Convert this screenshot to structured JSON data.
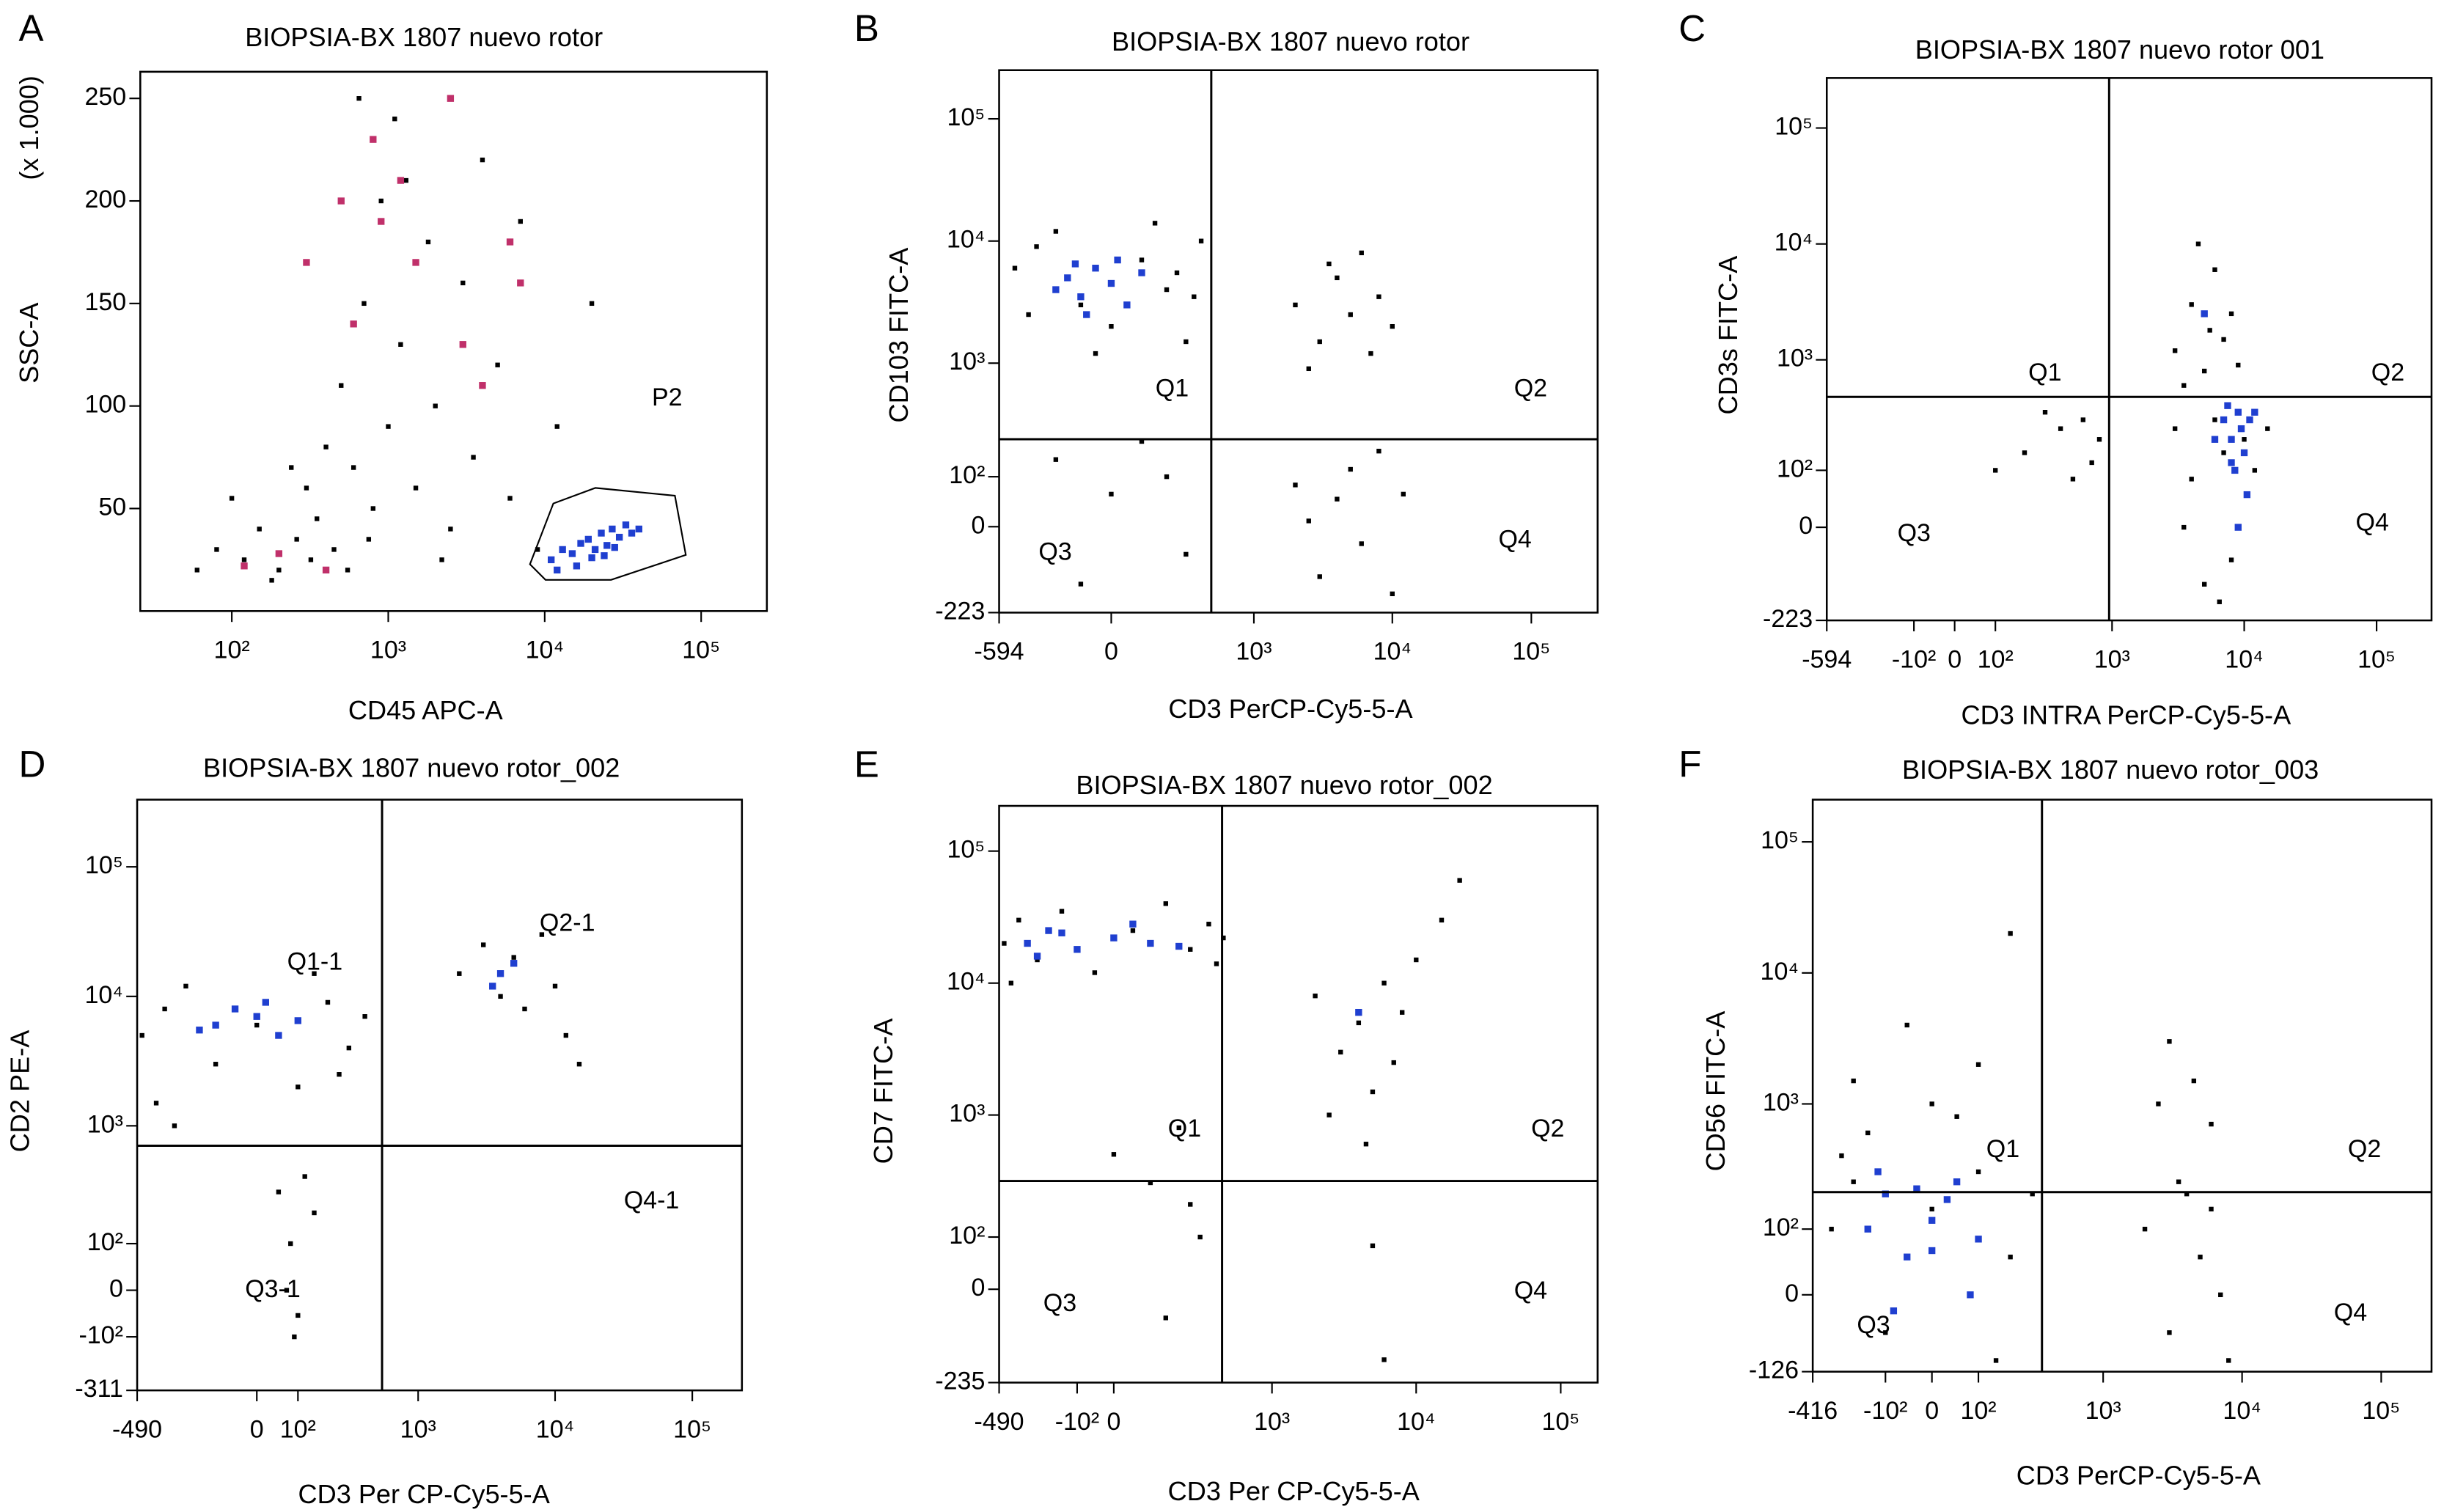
{
  "chart_data": [
    {
      "type": "scatter",
      "panel_label": "A",
      "title": "BIOPSIA-BX 1807 nuevo rotor",
      "x_label": "CD45 APC-A",
      "y_label": "SSC-A",
      "y_unit": "(x 1.000)",
      "xscale": "log",
      "yscale": "linear",
      "xlim": [
        26,
        263000
      ],
      "ylim": [
        0,
        263
      ],
      "xticks": [
        {
          "value": 100,
          "label": "10²"
        },
        {
          "value": 1000,
          "label": "10³"
        },
        {
          "value": 10000,
          "label": "10⁴"
        },
        {
          "value": 100000,
          "label": "10⁵"
        }
      ],
      "yticks": [
        50,
        100,
        150,
        200,
        250
      ],
      "gate_label": "P2",
      "series": [
        {
          "color": "#000000",
          "x": [
            80,
            120,
            150,
            200,
            260,
            300,
            350,
            400,
            450,
            500,
            600,
            700,
            800,
            900,
            1000,
            1100,
            1200,
            1500,
            1800,
            2000,
            2500,
            3000,
            3500,
            4000,
            5000,
            6000,
            7000,
            9000,
            12000,
            20000,
            60,
            100,
            180,
            240,
            320,
            550,
            650,
            750,
            1300,
            2200
          ],
          "y": [
            30,
            25,
            40,
            20,
            35,
            60,
            45,
            80,
            30,
            110,
            70,
            150,
            50,
            200,
            90,
            240,
            130,
            60,
            180,
            100,
            40,
            160,
            75,
            220,
            120,
            55,
            190,
            30,
            90,
            150,
            20,
            55,
            15,
            70,
            25,
            20,
            250,
            35,
            210,
            25
          ]
        },
        {
          "color": "#c0306a",
          "x": [
            120,
            200,
            300,
            500,
            600,
            900,
            1200,
            1500,
            3000,
            4000,
            6000,
            7000,
            2500,
            800,
            400
          ],
          "y": [
            22,
            28,
            170,
            200,
            140,
            190,
            210,
            170,
            130,
            110,
            180,
            160,
            250,
            230,
            20
          ]
        },
        {
          "color": "#1f3fd0",
          "x": [
            11000,
            13000,
            15000,
            17000,
            19000,
            21000,
            23000,
            25000,
            27000,
            30000,
            33000,
            36000,
            16000,
            20000,
            24000,
            28000,
            12000,
            40000
          ],
          "y": [
            25,
            30,
            28,
            33,
            35,
            30,
            38,
            32,
            40,
            36,
            42,
            38,
            22,
            26,
            27,
            31,
            20,
            40
          ]
        }
      ]
    },
    {
      "type": "scatter",
      "panel_label": "B",
      "title": "BIOPSIA-BX 1807 nuevo rotor",
      "x_label": "CD3 PerCP-Cy5-5-A",
      "y_label": "CD103 FITC-A",
      "xscale": "biex",
      "yscale": "biex",
      "xlim": [
        -594,
        300000
      ],
      "ylim": [
        -223,
        250000
      ],
      "xticks": [
        -594,
        0,
        {
          "value": 1000,
          "label": "10³"
        },
        {
          "value": 10000,
          "label": "10⁴"
        },
        {
          "value": 100000,
          "label": "10⁵"
        }
      ],
      "yticks": [
        {
          "value": 100000,
          "label": "10⁵"
        },
        {
          "value": 10000,
          "label": "10⁴"
        },
        {
          "value": 1000,
          "label": "10³"
        },
        {
          "value": 100,
          "label": "10²"
        },
        0,
        -223
      ],
      "quadrant_x": 480,
      "quadrant_y": 230,
      "quadrant_labels": [
        "Q1",
        "Q2",
        "Q3",
        "Q4"
      ],
      "series": [
        {
          "color": "#000000",
          "x": [
            -450,
            -300,
            -200,
            -100,
            0,
            100,
            200,
            300,
            400,
            -350,
            150,
            -50,
            250,
            350,
            2000,
            3000,
            4000,
            5000,
            6000,
            8000,
            10000,
            2500,
            7000,
            3500,
            -200,
            0,
            100,
            300,
            -100,
            200,
            2000,
            3000,
            4000,
            5000,
            6000,
            8000,
            10000,
            2500,
            12000
          ],
          "y": [
            6000,
            9000,
            12000,
            3000,
            2000,
            7000,
            4000,
            1500,
            10000,
            2500,
            14000,
            1200,
            5500,
            3500,
            3000,
            1500,
            5000,
            2500,
            8000,
            3500,
            2000,
            900,
            1200,
            6500,
            150,
            60,
            220,
            -50,
            -120,
            100,
            80,
            -100,
            50,
            120,
            -30,
            180,
            -150,
            10,
            60
          ]
        },
        {
          "color": "#1f3fd0",
          "x": [
            -150,
            -100,
            -50,
            0,
            50,
            -200,
            100,
            -80,
            20,
            -120
          ],
          "y": [
            5000,
            3500,
            6000,
            4500,
            3000,
            4000,
            5500,
            2500,
            7000,
            6500
          ]
        }
      ]
    },
    {
      "type": "scatter",
      "panel_label": "C",
      "title": "BIOPSIA-BX 1807 nuevo rotor 001",
      "x_label": "CD3 INTRA PerCP-Cy5-5-A",
      "y_label": "CD3s FITC-A",
      "xscale": "biex",
      "yscale": "biex",
      "xlim": [
        -594,
        260000
      ],
      "ylim": [
        -223,
        270000
      ],
      "xticks": [
        -594,
        {
          "value": -100,
          "label": "-10²"
        },
        0,
        {
          "value": 100,
          "label": "10²"
        },
        {
          "value": 1000,
          "label": "10³"
        },
        {
          "value": 10000,
          "label": "10⁴"
        },
        {
          "value": 100000,
          "label": "10⁵"
        }
      ],
      "yticks": [
        {
          "value": 100000,
          "label": "10⁵"
        },
        {
          "value": 10000,
          "label": "10⁴"
        },
        {
          "value": 1000,
          "label": "10³"
        },
        {
          "value": 100,
          "label": "10²"
        },
        0,
        -223
      ],
      "quadrant_x": 950,
      "quadrant_y": 477,
      "quadrant_labels": [
        "Q1",
        "Q2",
        "Q3",
        "Q4"
      ],
      "series": [
        {
          "color": "#000000",
          "x": [
            3000,
            4000,
            5000,
            6000,
            7000,
            8000,
            4500,
            9000,
            5500,
            3500,
            200,
            400,
            600,
            800,
            100,
            300,
            700,
            500,
            3000,
            4000,
            5000,
            6000,
            7000,
            8000,
            9000,
            10000,
            12000,
            15000,
            3500,
            6500
          ],
          "y": [
            1200,
            3000,
            800,
            6000,
            1500,
            2500,
            10000,
            900,
            1800,
            600,
            150,
            250,
            300,
            200,
            100,
            350,
            120,
            80,
            250,
            80,
            -100,
            300,
            150,
            -50,
            350,
            200,
            100,
            250,
            0,
            -150
          ]
        },
        {
          "color": "#1f3fd0",
          "x": [
            7000,
            8000,
            9000,
            10000,
            8500,
            9500,
            7500,
            11000,
            6000,
            10500,
            5000,
            8000,
            9000,
            12000
          ],
          "y": [
            300,
            200,
            350,
            150,
            100,
            250,
            400,
            300,
            200,
            50,
            2500,
            120,
            0,
            350
          ]
        }
      ]
    },
    {
      "type": "scatter",
      "panel_label": "D",
      "title": "BIOPSIA-BX 1807 nuevo rotor_002",
      "x_label": "CD3  Per CP-Cy5-5-A",
      "y_label": "CD2 PE-A",
      "xscale": "biex",
      "yscale": "biex",
      "xlim": [
        -490,
        230000
      ],
      "ylim": [
        -311,
        330000
      ],
      "xticks": [
        -490,
        0,
        {
          "value": 100,
          "label": "10²"
        },
        {
          "value": 1000,
          "label": "10³"
        },
        {
          "value": 10000,
          "label": "10⁴"
        },
        {
          "value": 100000,
          "label": "10⁵"
        }
      ],
      "yticks": [
        {
          "value": 100000,
          "label": "10⁵"
        },
        {
          "value": 10000,
          "label": "10⁴"
        },
        {
          "value": 1000,
          "label": "10³"
        },
        {
          "value": 100,
          "label": "10²"
        },
        0,
        {
          "value": -100,
          "label": "-10²"
        },
        -311
      ],
      "quadrant_x": 540,
      "quadrant_y": 700,
      "quadrant_labels": [
        "Q1-1",
        "Q2-1",
        "Q3-1",
        "Q4-1"
      ],
      "series": [
        {
          "color": "#000000",
          "x": [
            -450,
            -300,
            -200,
            -100,
            0,
            100,
            200,
            300,
            400,
            -350,
            150,
            -250,
            250,
            2000,
            3000,
            4000,
            5000,
            6000,
            8000,
            10000,
            15000,
            12000,
            50,
            80,
            100,
            120,
            70,
            150,
            90
          ],
          "y": [
            5000,
            8000,
            12000,
            3000,
            6000,
            2000,
            9000,
            4000,
            7000,
            1500,
            15000,
            1000,
            2500,
            15000,
            25000,
            10000,
            20000,
            8000,
            30000,
            12000,
            3000,
            5000,
            300,
            100,
            -50,
            400,
            0,
            200,
            -100
          ]
        },
        {
          "color": "#1f3fd0",
          "x": [
            -100,
            0,
            50,
            -50,
            100,
            -150,
            20,
            4000,
            5000,
            3500
          ],
          "y": [
            6000,
            7000,
            5000,
            8000,
            6500,
            5500,
            9000,
            15000,
            18000,
            12000
          ]
        }
      ]
    },
    {
      "type": "scatter",
      "panel_label": "E",
      "title": "BIOPSIA-BX 1807 nuevo rotor_002",
      "x_label": "CD3  Per CP-Cy5-5-A",
      "y_label": "CD7 FITC-A",
      "xscale": "biex",
      "yscale": "biex",
      "xlim": [
        -490,
        180000
      ],
      "ylim": [
        -235,
        220000
      ],
      "xticks": [
        -490,
        {
          "value": -100,
          "label": "-10²"
        },
        0,
        {
          "value": 1000,
          "label": "10³"
        },
        {
          "value": 10000,
          "label": "10⁴"
        },
        {
          "value": 100000,
          "label": "10⁵"
        }
      ],
      "yticks": [
        {
          "value": 100000,
          "label": "10⁵"
        },
        {
          "value": 10000,
          "label": "10⁴"
        },
        {
          "value": 1000,
          "label": "10³"
        },
        {
          "value": 100,
          "label": "10²"
        },
        0,
        -235
      ],
      "quadrant_x": 440,
      "quadrant_y": 310,
      "quadrant_labels": [
        "Q1",
        "Q2",
        "Q3",
        "Q4"
      ],
      "series": [
        {
          "color": "#000000",
          "x": [
            -450,
            -350,
            -250,
            -150,
            -50,
            50,
            150,
            250,
            350,
            400,
            -400,
            450,
            2000,
            3000,
            4000,
            5000,
            6000,
            7000,
            8000,
            2500,
            4500,
            10000,
            15000,
            20000,
            100,
            200,
            300,
            0,
            150,
            5000,
            6000,
            250
          ],
          "y": [
            20000,
            30000,
            15000,
            35000,
            12000,
            25000,
            40000,
            18000,
            28000,
            14000,
            10000,
            22000,
            8000,
            3000,
            5000,
            1500,
            10000,
            2500,
            6000,
            1000,
            600,
            15000,
            30000,
            60000,
            300,
            800,
            100,
            500,
            -50,
            80,
            -150,
            200
          ]
        },
        {
          "color": "#1f3fd0",
          "x": [
            -300,
            -200,
            -100,
            0,
            100,
            -250,
            50,
            -150,
            200,
            4000
          ],
          "y": [
            20000,
            25000,
            18000,
            22000,
            20000,
            16000,
            28000,
            24000,
            19000,
            6000
          ]
        }
      ]
    },
    {
      "type": "scatter",
      "panel_label": "F",
      "title": "BIOPSIA-BX 1807 nuevo rotor_003",
      "x_label": "CD3  PerCP-Cy5-5-A",
      "y_label": "CD56 FITC-A",
      "xscale": "biex",
      "yscale": "biex",
      "xlim": [
        -416,
        230000
      ],
      "ylim": [
        -126,
        210000
      ],
      "xticks": [
        -416,
        {
          "value": -100,
          "label": "-10²"
        },
        0,
        {
          "value": 100,
          "label": "10²"
        },
        {
          "value": 1000,
          "label": "10³"
        },
        {
          "value": 10000,
          "label": "10⁴"
        },
        {
          "value": 100000,
          "label": "10⁵"
        }
      ],
      "yticks": [
        {
          "value": 100000,
          "label": "10⁵"
        },
        {
          "value": 10000,
          "label": "10⁴"
        },
        {
          "value": 1000,
          "label": "10³"
        },
        {
          "value": 100,
          "label": "10²"
        },
        0,
        -126
      ],
      "quadrant_x": 355,
      "quadrant_y": 207,
      "quadrant_labels": [
        "Q1",
        "Q2",
        "Q3",
        "Q4"
      ],
      "series": [
        {
          "color": "#000000",
          "x": [
            -300,
            -200,
            -100,
            0,
            100,
            200,
            300,
            -250,
            150,
            -150,
            0,
            100,
            -50,
            200,
            50,
            -200,
            2000,
            3000,
            4000,
            5000,
            6000,
            8000,
            3500,
            7000,
            2500,
            4500,
            3000,
            6000
          ],
          "y": [
            100,
            250,
            -50,
            150,
            300,
            50,
            200,
            400,
            -100,
            600,
            1000,
            2000,
            4000,
            20000,
            800,
            1500,
            100,
            -50,
            200,
            50,
            150,
            -100,
            250,
            0,
            1000,
            1500,
            3000,
            700
          ]
        },
        {
          "color": "#1f3fd0",
          "x": [
            -150,
            -100,
            -50,
            0,
            50,
            100,
            -80,
            30,
            -120,
            80,
            0,
            -30
          ],
          "y": [
            100,
            200,
            50,
            120,
            250,
            80,
            -20,
            180,
            300,
            0,
            60,
            220
          ]
        }
      ]
    }
  ]
}
